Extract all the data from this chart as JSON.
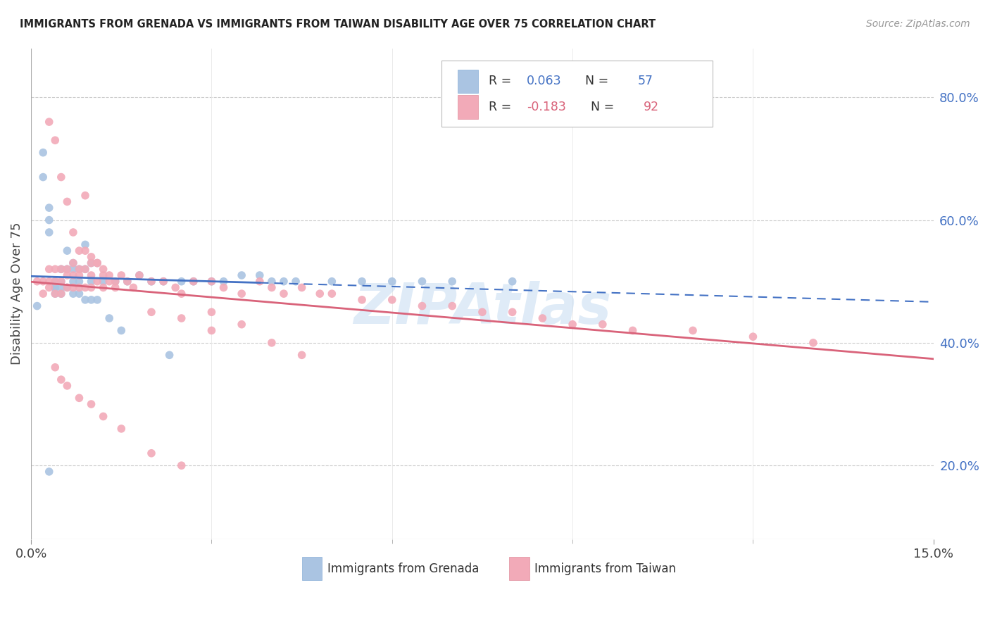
{
  "title": "IMMIGRANTS FROM GRENADA VS IMMIGRANTS FROM TAIWAN DISABILITY AGE OVER 75 CORRELATION CHART",
  "source": "Source: ZipAtlas.com",
  "ylabel": "Disability Age Over 75",
  "ylabel_right_vals": [
    0.2,
    0.4,
    0.6,
    0.8
  ],
  "xmin": 0.0,
  "xmax": 0.15,
  "ymin": 0.08,
  "ymax": 0.88,
  "R_grenada": 0.063,
  "N_grenada": 57,
  "R_taiwan": -0.183,
  "N_taiwan": 92,
  "color_grenada": "#aac4e2",
  "color_taiwan": "#f2aab8",
  "color_grenada_line": "#4472c4",
  "color_taiwan_line": "#d9637a",
  "color_right_axis": "#4472c4",
  "background_color": "#ffffff",
  "grenada_x": [
    0.001,
    0.002,
    0.002,
    0.003,
    0.003,
    0.003,
    0.004,
    0.004,
    0.004,
    0.004,
    0.005,
    0.005,
    0.005,
    0.005,
    0.006,
    0.006,
    0.006,
    0.007,
    0.007,
    0.007,
    0.007,
    0.008,
    0.008,
    0.008,
    0.009,
    0.009,
    0.009,
    0.01,
    0.01,
    0.01,
    0.011,
    0.011,
    0.012,
    0.013,
    0.014,
    0.015,
    0.016,
    0.018,
    0.02,
    0.022,
    0.023,
    0.025,
    0.027,
    0.03,
    0.032,
    0.035,
    0.038,
    0.04,
    0.042,
    0.044,
    0.05,
    0.055,
    0.06,
    0.065,
    0.07,
    0.08,
    0.003
  ],
  "grenada_y": [
    0.46,
    0.71,
    0.67,
    0.62,
    0.6,
    0.58,
    0.5,
    0.49,
    0.49,
    0.48,
    0.52,
    0.5,
    0.49,
    0.48,
    0.55,
    0.52,
    0.49,
    0.53,
    0.52,
    0.5,
    0.48,
    0.52,
    0.5,
    0.48,
    0.56,
    0.52,
    0.47,
    0.53,
    0.5,
    0.47,
    0.53,
    0.47,
    0.5,
    0.44,
    0.5,
    0.42,
    0.5,
    0.51,
    0.5,
    0.5,
    0.38,
    0.5,
    0.5,
    0.5,
    0.5,
    0.51,
    0.51,
    0.5,
    0.5,
    0.5,
    0.5,
    0.5,
    0.5,
    0.5,
    0.5,
    0.5,
    0.19
  ],
  "taiwan_x": [
    0.001,
    0.002,
    0.002,
    0.003,
    0.003,
    0.003,
    0.004,
    0.004,
    0.004,
    0.005,
    0.005,
    0.005,
    0.006,
    0.006,
    0.006,
    0.007,
    0.007,
    0.007,
    0.008,
    0.008,
    0.008,
    0.009,
    0.009,
    0.009,
    0.01,
    0.01,
    0.01,
    0.011,
    0.011,
    0.012,
    0.012,
    0.013,
    0.014,
    0.015,
    0.016,
    0.017,
    0.018,
    0.02,
    0.022,
    0.024,
    0.025,
    0.027,
    0.03,
    0.032,
    0.035,
    0.038,
    0.04,
    0.042,
    0.045,
    0.048,
    0.05,
    0.055,
    0.06,
    0.065,
    0.07,
    0.075,
    0.08,
    0.085,
    0.09,
    0.095,
    0.1,
    0.11,
    0.12,
    0.13,
    0.003,
    0.004,
    0.005,
    0.006,
    0.007,
    0.008,
    0.009,
    0.01,
    0.011,
    0.012,
    0.013,
    0.014,
    0.02,
    0.025,
    0.03,
    0.004,
    0.005,
    0.006,
    0.008,
    0.01,
    0.012,
    0.015,
    0.02,
    0.025,
    0.03,
    0.035,
    0.04,
    0.045
  ],
  "taiwan_y": [
    0.5,
    0.5,
    0.48,
    0.52,
    0.5,
    0.49,
    0.52,
    0.5,
    0.48,
    0.52,
    0.5,
    0.48,
    0.52,
    0.51,
    0.49,
    0.53,
    0.51,
    0.49,
    0.52,
    0.51,
    0.49,
    0.64,
    0.52,
    0.49,
    0.53,
    0.51,
    0.49,
    0.53,
    0.5,
    0.52,
    0.49,
    0.51,
    0.5,
    0.51,
    0.5,
    0.49,
    0.51,
    0.5,
    0.5,
    0.49,
    0.48,
    0.5,
    0.5,
    0.49,
    0.48,
    0.5,
    0.49,
    0.48,
    0.49,
    0.48,
    0.48,
    0.47,
    0.47,
    0.46,
    0.46,
    0.45,
    0.45,
    0.44,
    0.43,
    0.43,
    0.42,
    0.42,
    0.41,
    0.4,
    0.76,
    0.73,
    0.67,
    0.63,
    0.58,
    0.55,
    0.55,
    0.54,
    0.53,
    0.51,
    0.5,
    0.49,
    0.45,
    0.44,
    0.42,
    0.36,
    0.34,
    0.33,
    0.31,
    0.3,
    0.28,
    0.26,
    0.22,
    0.2,
    0.45,
    0.43,
    0.4,
    0.38
  ]
}
